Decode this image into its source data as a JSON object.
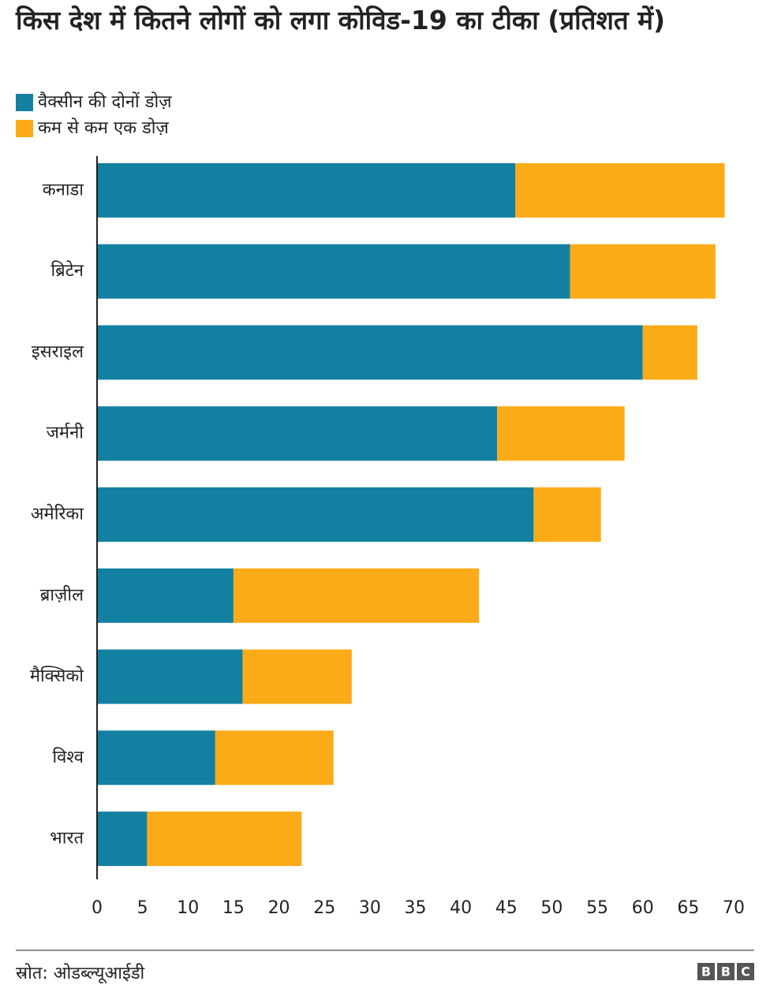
{
  "chart_data": {
    "type": "stacked_barh",
    "title": "किस देश में कितने लोगों को लगा कोविड-19 का टीका (प्रतिशत में)",
    "categories": [
      "कनाडा",
      "ब्रिटेन",
      "इसराइल",
      "जर्मनी",
      "अमेरिका",
      "ब्राज़ील",
      "मैक्सिको",
      "विश्व",
      "भारत"
    ],
    "series": [
      {
        "name": "वैक्सीन की दोनों डोज़",
        "color": "#1380a1",
        "values": [
          46,
          52,
          60,
          44,
          48,
          15,
          16,
          13,
          5.5
        ]
      },
      {
        "name": "कम से कम एक डोज़",
        "color": "#fbab18",
        "values": [
          23,
          16,
          6,
          14,
          7.4,
          27,
          12,
          13,
          17
        ]
      }
    ],
    "xlim": [
      0,
      70
    ],
    "xticks": [
      0,
      5,
      10,
      15,
      20,
      25,
      30,
      35,
      40,
      45,
      50,
      55,
      60,
      65,
      70
    ],
    "grid": false,
    "source": "स्रोत: ओडब्ल्यूआईडी",
    "logo": [
      "B",
      "B",
      "C"
    ]
  }
}
